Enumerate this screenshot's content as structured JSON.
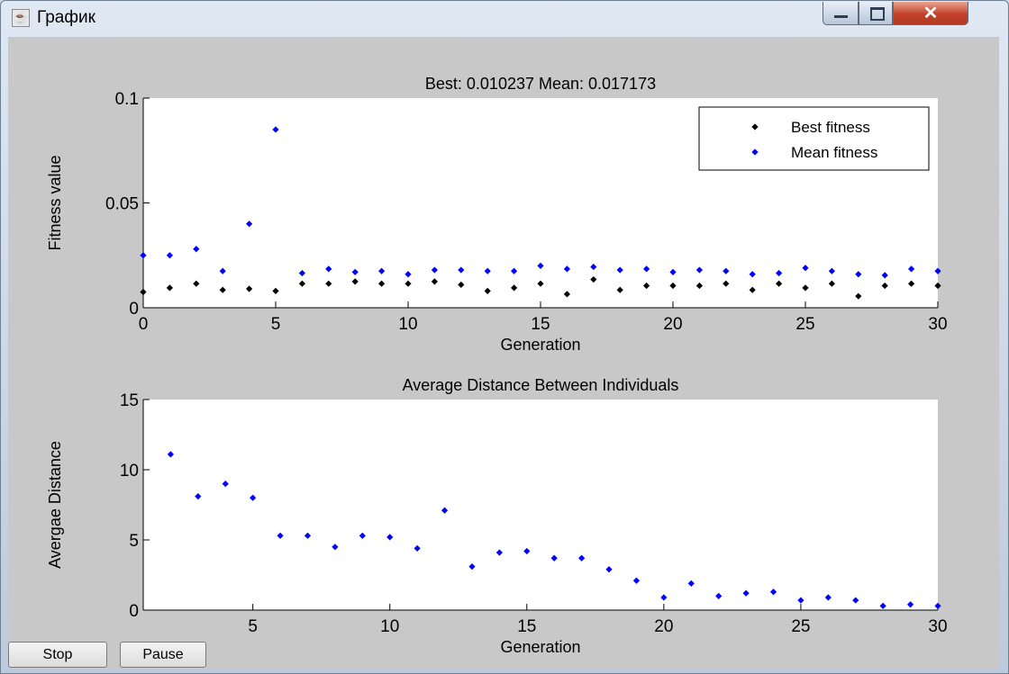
{
  "window": {
    "title": "График",
    "icon": "java-cup-icon",
    "controls": [
      "minimize",
      "maximize",
      "close"
    ]
  },
  "buttons": {
    "stop": "Stop",
    "pause": "Pause"
  },
  "colors": {
    "best": "#000000",
    "mean": "#0000ff",
    "distance": "#0000ff",
    "plot_bg": "#ffffff",
    "figure_bg": "#c8c8c8"
  },
  "chart_data": [
    {
      "type": "scatter",
      "title": "Best: 0.010237 Mean: 0.017173",
      "xlabel": "Generation",
      "ylabel": "Fitness value",
      "xlim": [
        0,
        30
      ],
      "ylim": [
        0,
        0.1
      ],
      "xticks": [
        "0",
        "5",
        "10",
        "15",
        "20",
        "25",
        "30"
      ],
      "yticks": [
        "0",
        "0.05",
        "0.1"
      ],
      "legend": "top-right",
      "grid": false,
      "series": [
        {
          "name": "Best fitness",
          "x": [
            0,
            1,
            2,
            3,
            4,
            5,
            6,
            7,
            8,
            9,
            10,
            11,
            12,
            13,
            14,
            15,
            16,
            17,
            18,
            19,
            20,
            21,
            22,
            23,
            24,
            25,
            26,
            27,
            28,
            29,
            30
          ],
          "y": [
            0.0075,
            0.0095,
            0.0115,
            0.0085,
            0.009,
            0.008,
            0.0115,
            0.0115,
            0.0125,
            0.0115,
            0.0115,
            0.0125,
            0.011,
            0.008,
            0.0095,
            0.0115,
            0.0065,
            0.0135,
            0.0085,
            0.0105,
            0.0105,
            0.0105,
            0.0115,
            0.0085,
            0.0115,
            0.0095,
            0.0115,
            0.0055,
            0.0105,
            0.0115,
            0.0105
          ]
        },
        {
          "name": "Mean fitness",
          "x": [
            0,
            1,
            2,
            3,
            4,
            5,
            6,
            7,
            8,
            9,
            10,
            11,
            12,
            13,
            14,
            15,
            16,
            17,
            18,
            19,
            20,
            21,
            22,
            23,
            24,
            25,
            26,
            27,
            28,
            29,
            30
          ],
          "y": [
            0.025,
            0.025,
            0.028,
            0.0175,
            0.04,
            0.085,
            0.0165,
            0.0185,
            0.017,
            0.0175,
            0.016,
            0.018,
            0.018,
            0.0175,
            0.0175,
            0.02,
            0.0185,
            0.0195,
            0.018,
            0.0185,
            0.017,
            0.018,
            0.0175,
            0.016,
            0.0165,
            0.019,
            0.0175,
            0.016,
            0.0155,
            0.0185,
            0.0175
          ]
        }
      ]
    },
    {
      "type": "scatter",
      "title": "Average Distance Between Individuals",
      "xlabel": "Generation",
      "ylabel": "Avergae Distance",
      "xlim": [
        1,
        30
      ],
      "ylim": [
        0,
        15
      ],
      "xticks": [
        "5",
        "10",
        "15",
        "20",
        "25",
        "30"
      ],
      "yticks": [
        "0",
        "5",
        "10",
        "15"
      ],
      "grid": false,
      "series": [
        {
          "x": [
            2,
            3,
            4,
            5,
            6,
            7,
            8,
            9,
            10,
            11,
            12,
            13,
            14,
            15,
            16,
            17,
            18,
            19,
            20,
            21,
            22,
            23,
            24,
            25,
            26,
            27,
            28,
            29,
            30
          ],
          "y": [
            11.1,
            8.1,
            9.0,
            8.0,
            5.3,
            5.3,
            4.5,
            5.3,
            5.2,
            4.4,
            7.1,
            3.1,
            4.1,
            4.2,
            3.7,
            3.7,
            2.9,
            2.1,
            0.9,
            1.9,
            1.0,
            1.2,
            1.3,
            0.7,
            0.9,
            0.7,
            0.3,
            0.4,
            0.3
          ]
        }
      ]
    }
  ]
}
